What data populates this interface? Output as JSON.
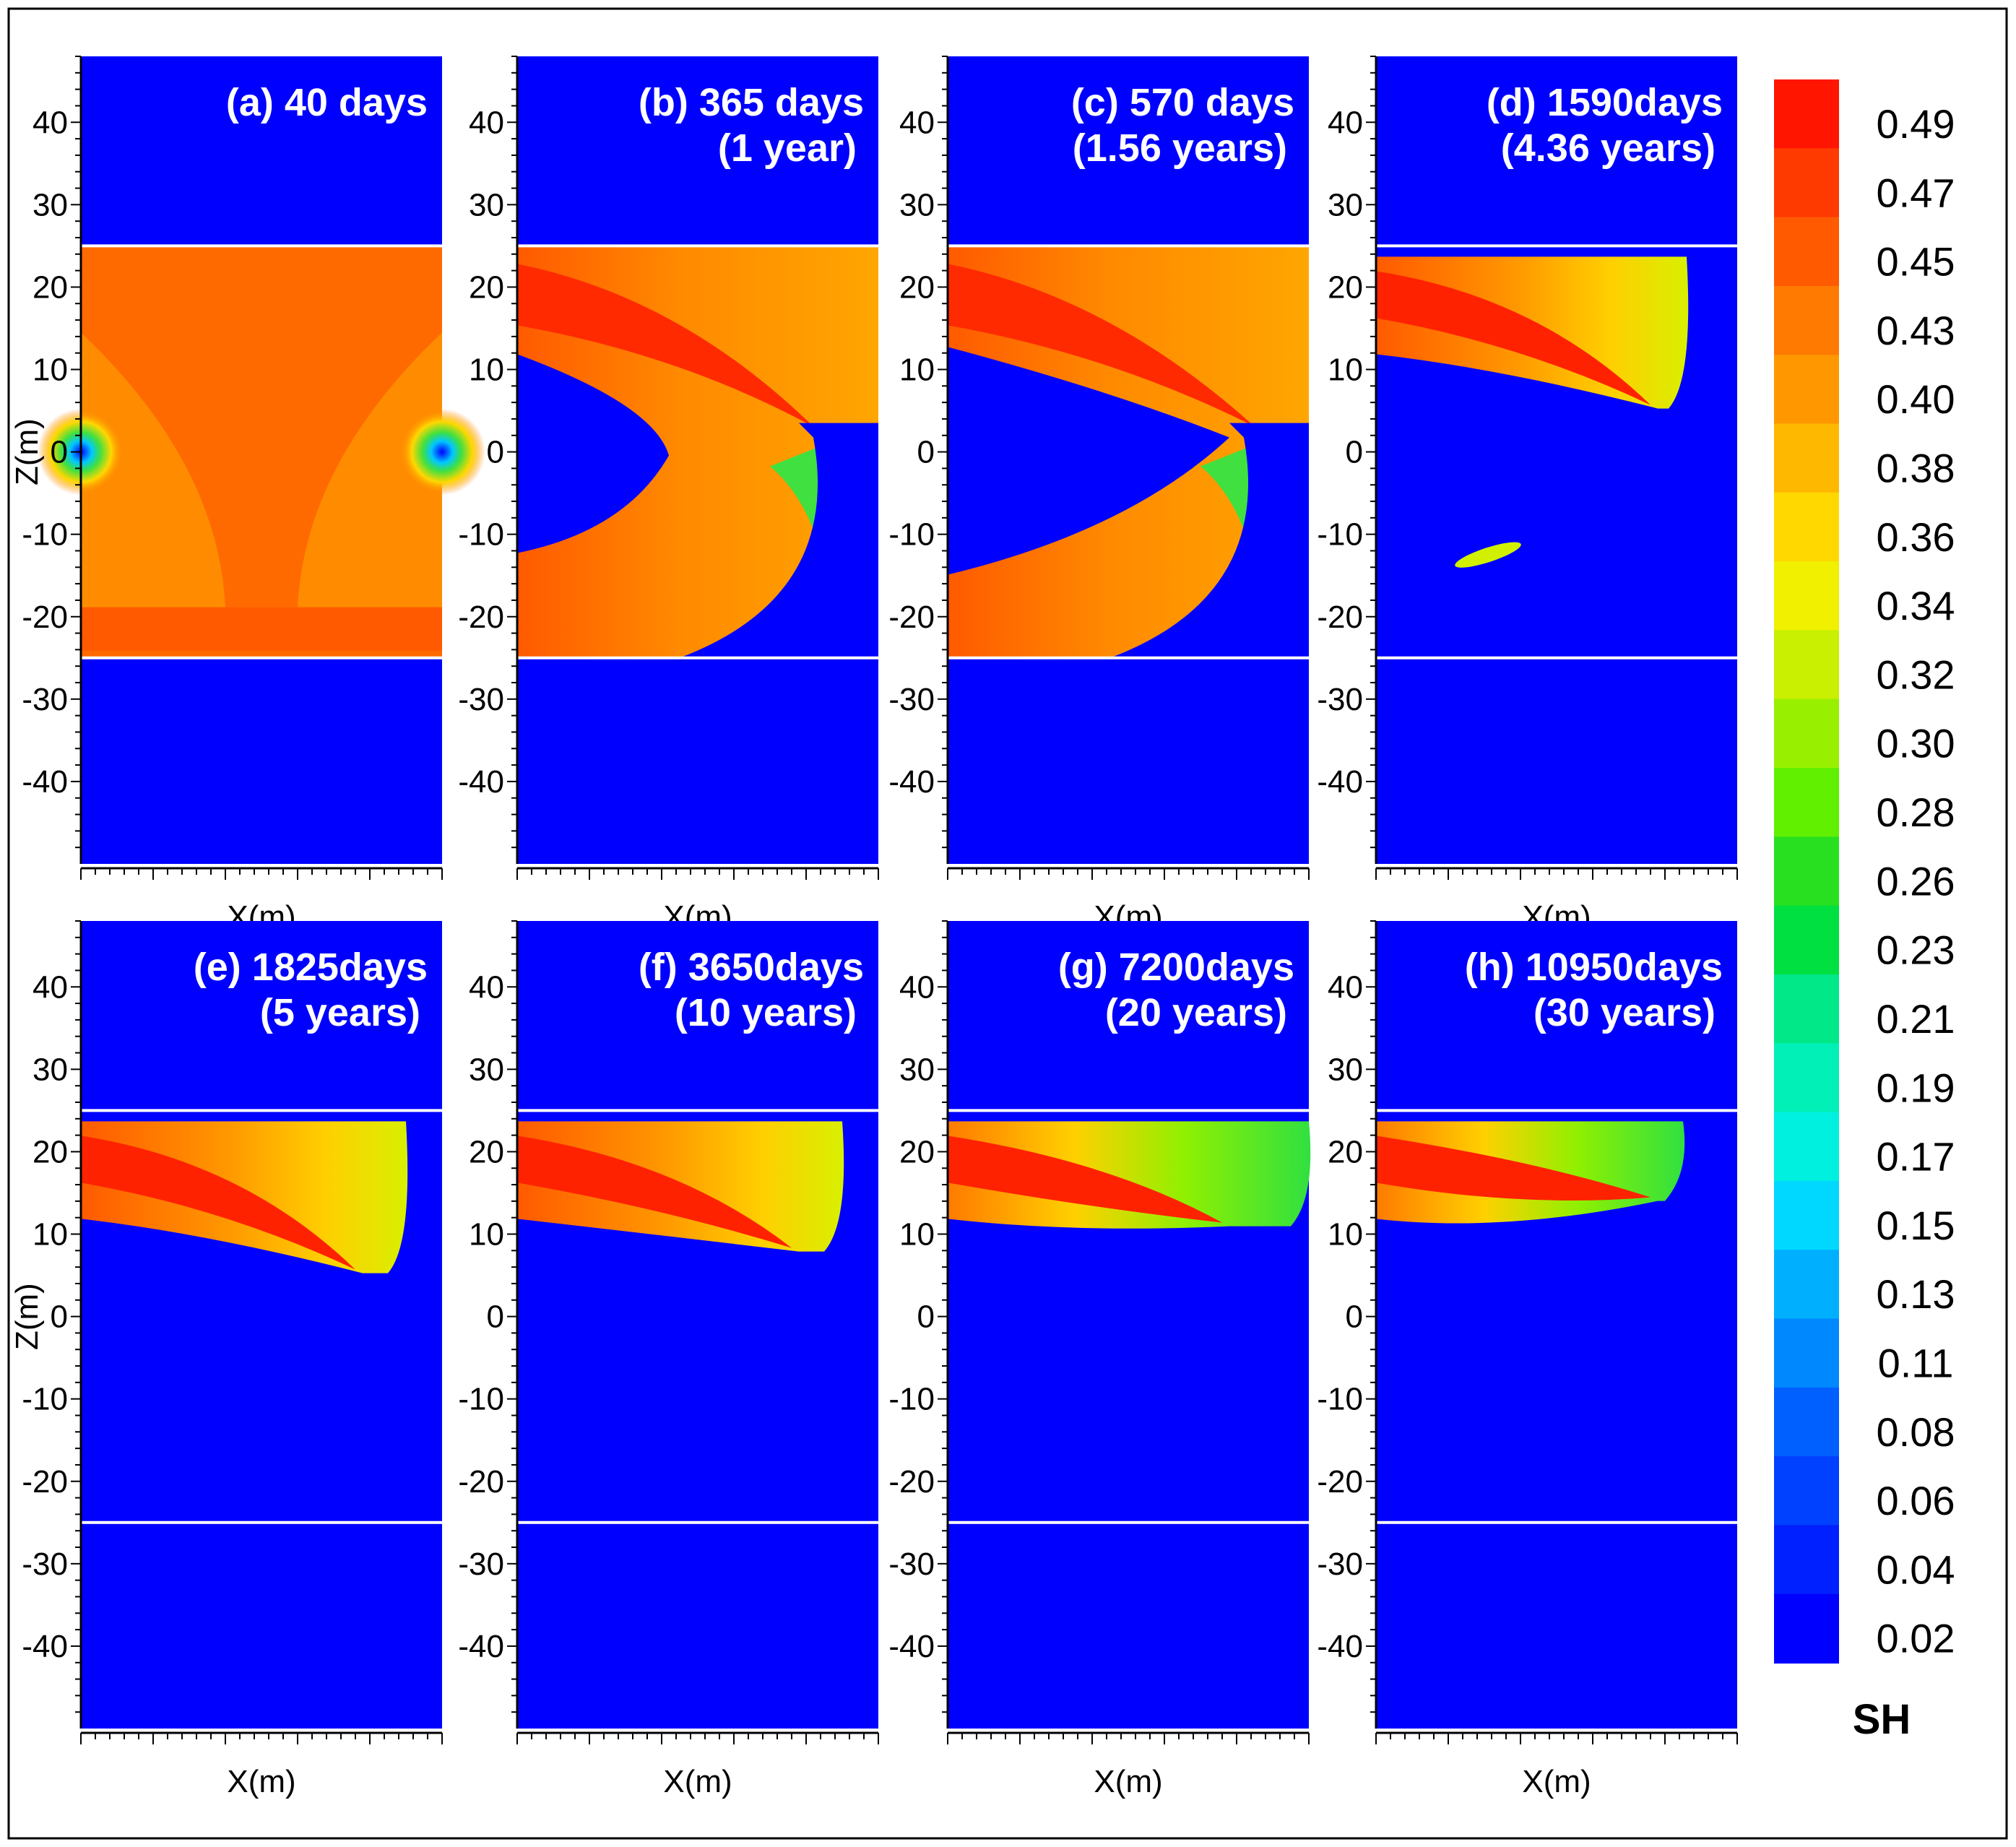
{
  "chart_data": {
    "type": "heatmap",
    "variable": "SH",
    "xlabel": "X(m)",
    "ylabel": "Z(m)",
    "ylim": [
      -50,
      48
    ],
    "yticks": [
      40,
      30,
      20,
      10,
      0,
      -10,
      -20,
      -30,
      -40
    ],
    "hydrate_layer_z": [
      -25,
      25
    ],
    "colorbar": {
      "title": "SH",
      "levels": [
        "0.49",
        "0.47",
        "0.45",
        "0.43",
        "0.40",
        "0.38",
        "0.36",
        "0.34",
        "0.32",
        "0.30",
        "0.28",
        "0.26",
        "0.23",
        "0.21",
        "0.19",
        "0.17",
        "0.15",
        "0.13",
        "0.11",
        "0.08",
        "0.06",
        "0.04",
        "0.02"
      ],
      "colors": [
        "#ff1500",
        "#ff3a00",
        "#ff5a00",
        "#ff7a00",
        "#ff9800",
        "#ffb800",
        "#ffd800",
        "#f0f000",
        "#c8f000",
        "#98f000",
        "#60f000",
        "#28e020",
        "#00e040",
        "#00e888",
        "#00f0b8",
        "#00f0e0",
        "#00d8ff",
        "#00b0ff",
        "#0088ff",
        "#0060ff",
        "#0040ff",
        "#0020ff",
        "#0000ff"
      ]
    },
    "panels": [
      {
        "id": "a",
        "line1": "(a) 40 days",
        "line2": "",
        "state": "initial"
      },
      {
        "id": "b",
        "line1": "(b) 365 days",
        "line2": "(1 year)",
        "state": "dissociating"
      },
      {
        "id": "c",
        "line1": "(c) 570 days",
        "line2": "(1.56 years)",
        "state": "dissociating"
      },
      {
        "id": "d",
        "line1": "(d) 1590days",
        "line2": "(4.36 years)",
        "state": "plume"
      },
      {
        "id": "e",
        "line1": "(e) 1825days",
        "line2": "(5 years)",
        "state": "plume"
      },
      {
        "id": "f",
        "line1": "(f) 3650days",
        "line2": "(10 years)",
        "state": "plume"
      },
      {
        "id": "g",
        "line1": "(g) 7200days",
        "line2": "(20 years)",
        "state": "plume"
      },
      {
        "id": "h",
        "line1": "(h) 10950days",
        "line2": "(30 years)",
        "state": "plume"
      }
    ]
  }
}
